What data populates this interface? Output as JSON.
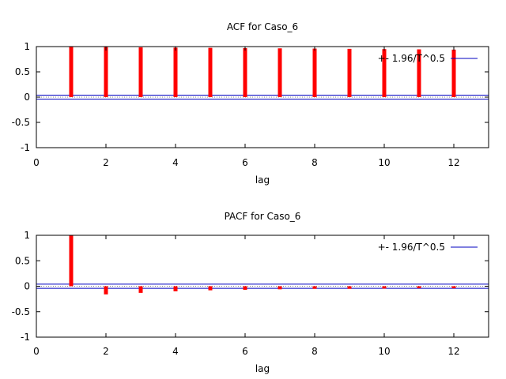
{
  "chart_data": [
    {
      "type": "bar",
      "title": "ACF for Caso_6",
      "xlabel": "lag",
      "ylabel": "",
      "xlim": [
        0,
        13
      ],
      "ylim": [
        -1,
        1
      ],
      "xticks": [
        0,
        2,
        4,
        6,
        8,
        10,
        12
      ],
      "yticks": [
        1,
        0.5,
        0,
        -0.5,
        -1
      ],
      "ytick_labels": [
        "1",
        "0.5",
        "0",
        "-0.5",
        "-1"
      ],
      "grid": false,
      "legend_position": "top-right",
      "x": [
        1,
        2,
        3,
        4,
        5,
        6,
        7,
        8,
        9,
        10,
        11,
        12
      ],
      "values": [
        0.995,
        0.99,
        0.985,
        0.98,
        0.975,
        0.97,
        0.965,
        0.96,
        0.955,
        0.95,
        0.945,
        0.94
      ],
      "bar_color": "#ff0000",
      "bands": {
        "label": "+- 1.96/T^0.5",
        "value": 0.04,
        "color": "#0000c0"
      }
    },
    {
      "type": "bar",
      "title": "PACF for Caso_6",
      "xlabel": "lag",
      "ylabel": "",
      "xlim": [
        0,
        13
      ],
      "ylim": [
        -1,
        1
      ],
      "xticks": [
        0,
        2,
        4,
        6,
        8,
        10,
        12
      ],
      "yticks": [
        1,
        0.5,
        0,
        -0.5,
        -1
      ],
      "ytick_labels": [
        "1",
        "0.5",
        "0",
        "-0.5",
        "-1"
      ],
      "grid": false,
      "legend_position": "top-right",
      "x": [
        1,
        2,
        3,
        4,
        5,
        6,
        7,
        8,
        9,
        10,
        11,
        12
      ],
      "values": [
        0.995,
        -0.16,
        -0.13,
        -0.1,
        -0.08,
        -0.07,
        -0.06,
        -0.05,
        -0.05,
        -0.045,
        -0.04,
        -0.04
      ],
      "bar_color": "#ff0000",
      "bands": {
        "label": "+- 1.96/T^0.5",
        "value": 0.04,
        "color": "#0000c0"
      }
    }
  ]
}
